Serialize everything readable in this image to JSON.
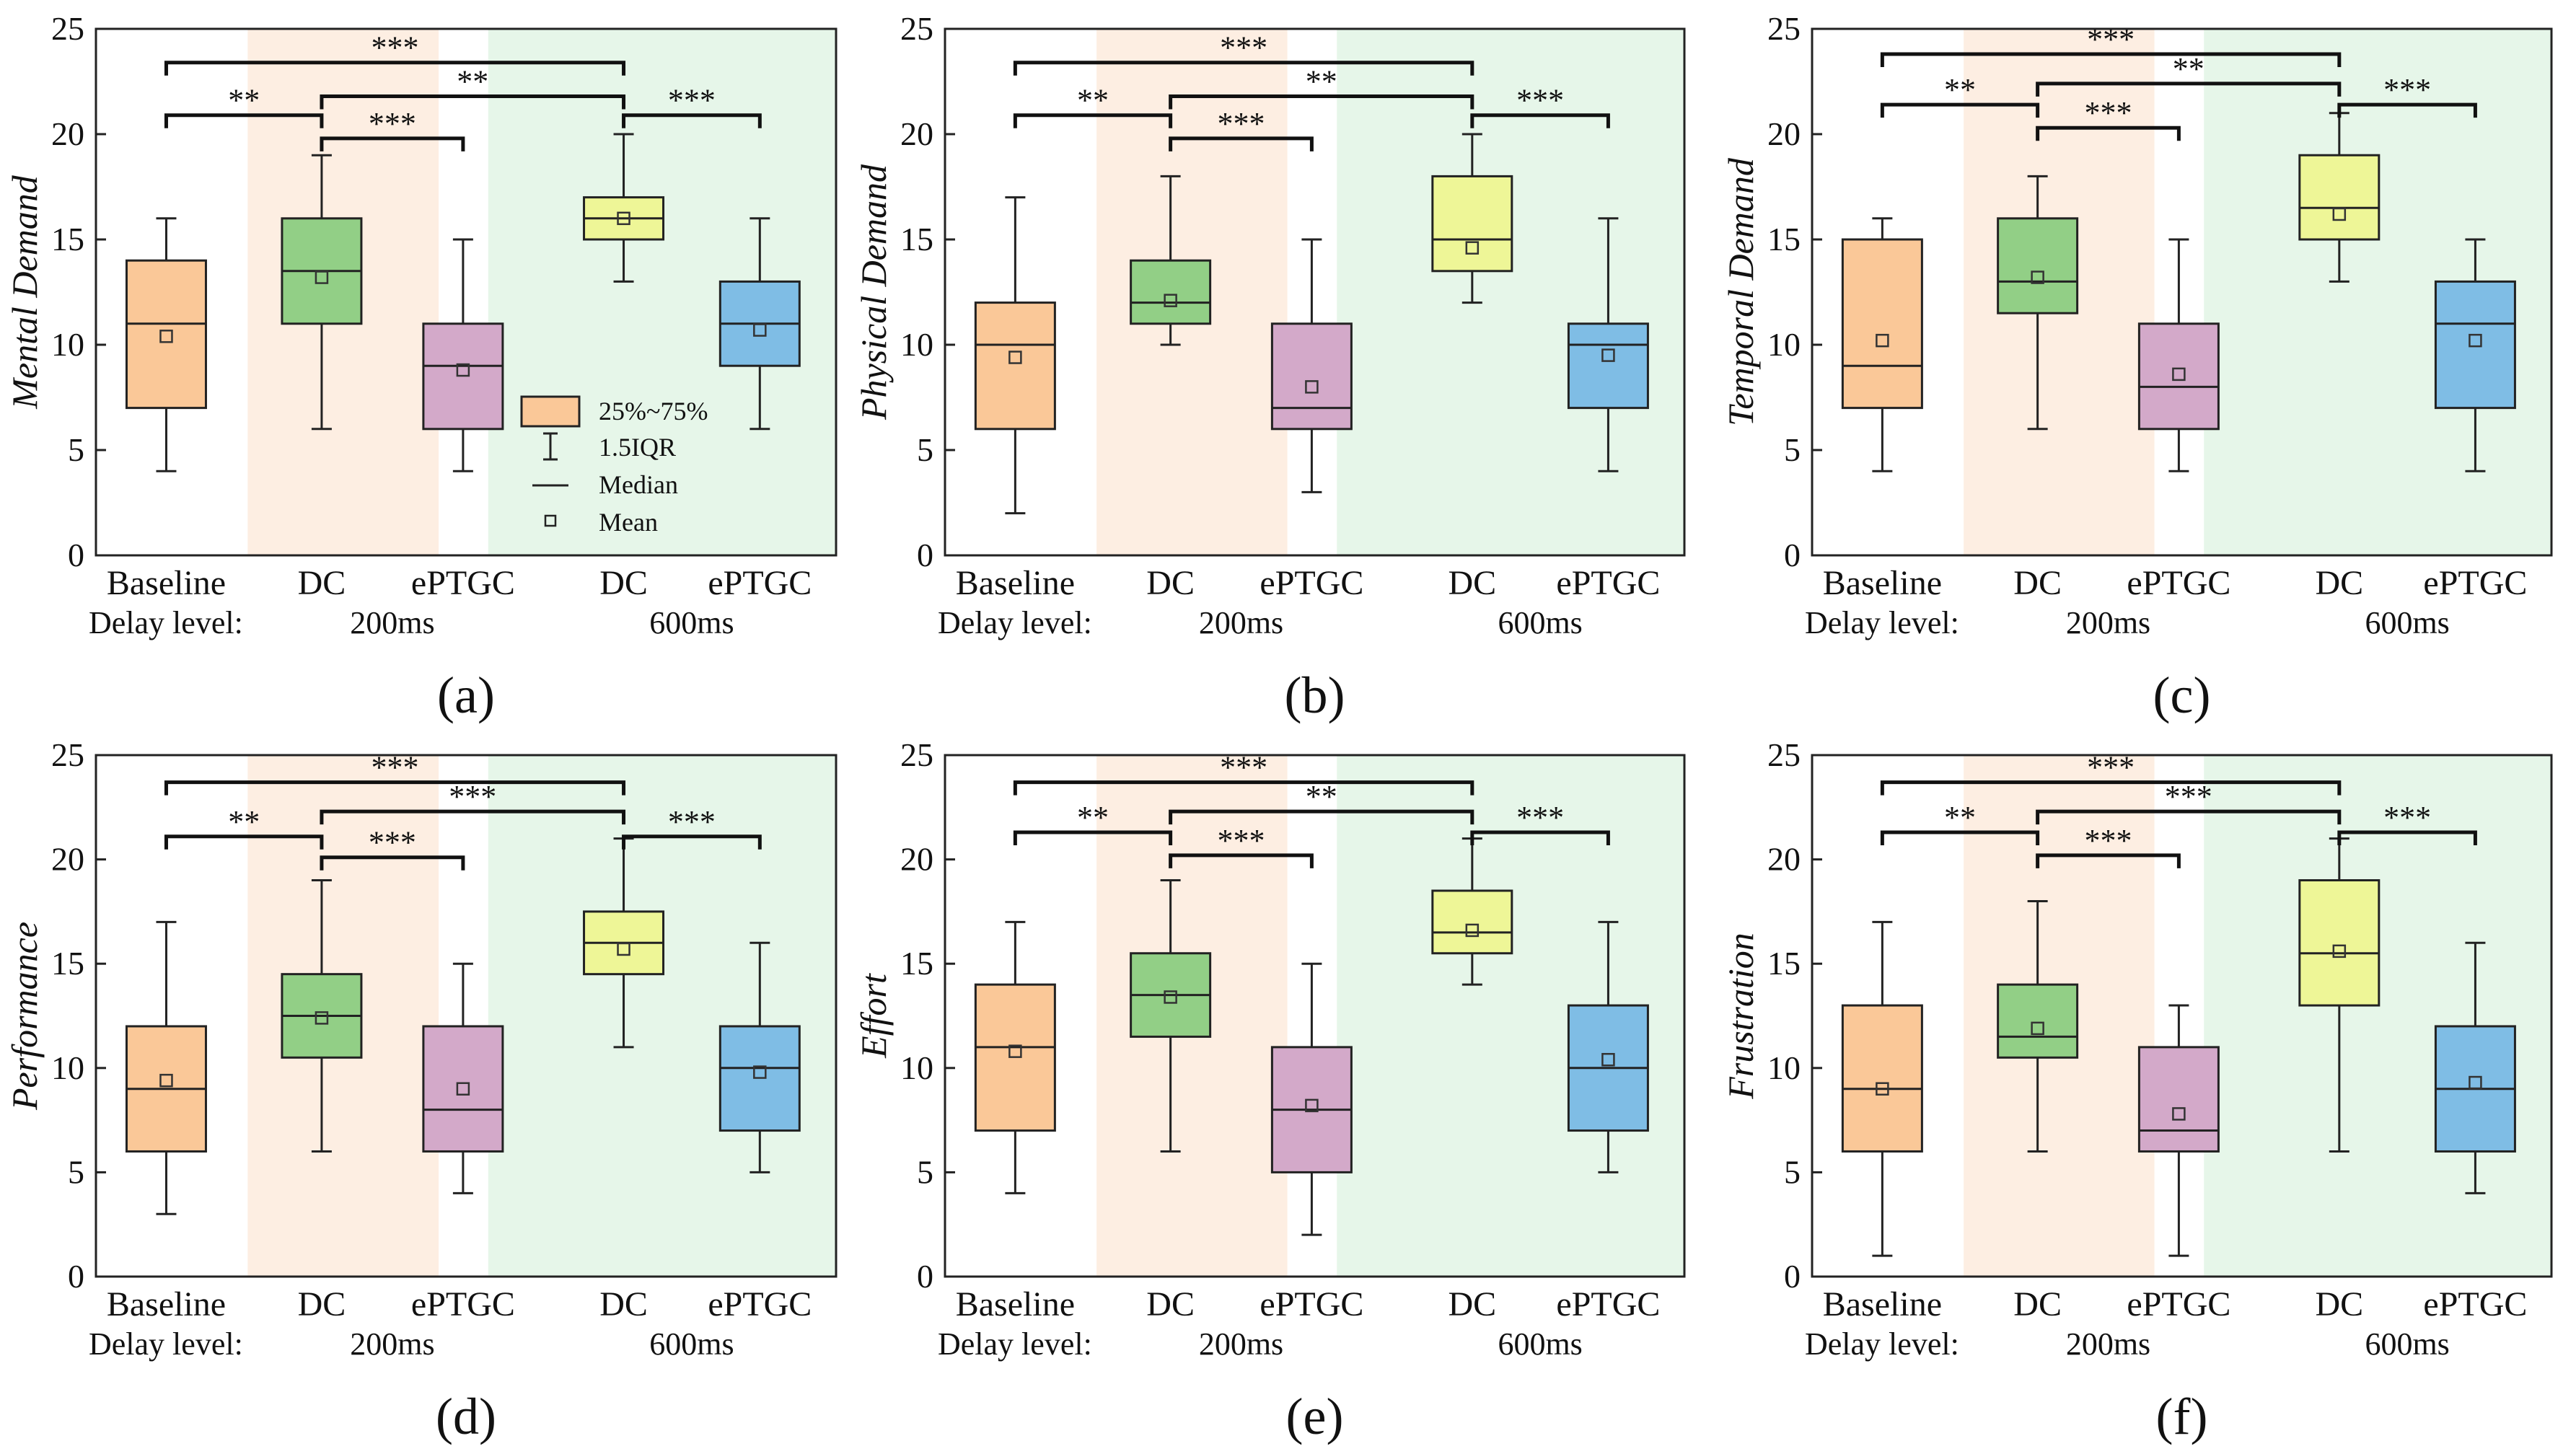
{
  "figure": {
    "delay_prefix": "Delay level:"
  },
  "legend": {
    "box": "25%~75%",
    "whisker": "1.5IQR",
    "median": "Median",
    "mean": "Mean"
  },
  "colors": {
    "Baseline": "#fac898",
    "DC200": "#92cf86",
    "ePTGC200": "#d3a9c9",
    "DC600": "#eef697",
    "ePTGC600": "#7fbde5",
    "band200": "#fdeee2",
    "band600": "#e6f6e9"
  },
  "chart_data": [
    {
      "type": "box",
      "panel_label": "(a)",
      "ylabel": "Mental Demand",
      "ylim": [
        0,
        25
      ],
      "yticks": [
        0,
        5,
        10,
        15,
        20,
        25
      ],
      "categories": [
        "Baseline",
        "DC",
        "ePTGC",
        "DC",
        "ePTGC"
      ],
      "groups": [
        {
          "label": "200ms",
          "members": [
            1,
            2
          ]
        },
        {
          "label": "600ms",
          "members": [
            3,
            4
          ]
        }
      ],
      "boxes": [
        {
          "min": 4,
          "q1": 7,
          "median": 11,
          "q3": 14,
          "max": 16,
          "mean": 10.4
        },
        {
          "min": 6,
          "q1": 11,
          "median": 13.5,
          "q3": 16,
          "max": 19,
          "mean": 13.2
        },
        {
          "min": 4,
          "q1": 6,
          "median": 9,
          "q3": 11,
          "max": 15,
          "mean": 8.8
        },
        {
          "min": 13,
          "q1": 15,
          "median": 16,
          "q3": 17,
          "max": 20,
          "mean": 16
        },
        {
          "min": 6,
          "q1": 9,
          "median": 11,
          "q3": 13,
          "max": 16,
          "mean": 10.7
        }
      ],
      "significance": [
        {
          "from": 0,
          "to": 3,
          "label": "***",
          "y": 23.4
        },
        {
          "from": 1,
          "to": 3,
          "label": "**",
          "y": 21.8
        },
        {
          "from": 0,
          "to": 1,
          "label": "**",
          "y": 20.9
        },
        {
          "from": 3,
          "to": 4,
          "label": "***",
          "y": 20.9
        },
        {
          "from": 1,
          "to": 2,
          "label": "***",
          "y": 19.8
        }
      ]
    },
    {
      "type": "box",
      "panel_label": "(b)",
      "ylabel": "Physical Demand",
      "ylim": [
        0,
        25
      ],
      "yticks": [
        0,
        5,
        10,
        15,
        20,
        25
      ],
      "categories": [
        "Baseline",
        "DC",
        "ePTGC",
        "DC",
        "ePTGC"
      ],
      "groups": [
        {
          "label": "200ms",
          "members": [
            1,
            2
          ]
        },
        {
          "label": "600ms",
          "members": [
            3,
            4
          ]
        }
      ],
      "boxes": [
        {
          "min": 2,
          "q1": 6,
          "median": 10,
          "q3": 12,
          "max": 17,
          "mean": 9.4
        },
        {
          "min": 10,
          "q1": 11,
          "median": 12,
          "q3": 14,
          "max": 18,
          "mean": 12.1
        },
        {
          "min": 3,
          "q1": 6,
          "median": 7,
          "q3": 11,
          "max": 15,
          "mean": 8
        },
        {
          "min": 12,
          "q1": 13.5,
          "median": 15,
          "q3": 18,
          "max": 20,
          "mean": 14.6
        },
        {
          "min": 4,
          "q1": 7,
          "median": 10,
          "q3": 11,
          "max": 16,
          "mean": 9.5
        }
      ],
      "significance": [
        {
          "from": 0,
          "to": 3,
          "label": "***",
          "y": 23.4
        },
        {
          "from": 1,
          "to": 3,
          "label": "**",
          "y": 21.8
        },
        {
          "from": 0,
          "to": 1,
          "label": "**",
          "y": 20.9
        },
        {
          "from": 3,
          "to": 4,
          "label": "***",
          "y": 20.9
        },
        {
          "from": 1,
          "to": 2,
          "label": "***",
          "y": 19.8
        }
      ]
    },
    {
      "type": "box",
      "panel_label": "(c)",
      "ylabel": "Temporal Demand",
      "ylim": [
        0,
        25
      ],
      "yticks": [
        0,
        5,
        10,
        15,
        20,
        25
      ],
      "categories": [
        "Baseline",
        "DC",
        "ePTGC",
        "DC",
        "ePTGC"
      ],
      "groups": [
        {
          "label": "200ms",
          "members": [
            1,
            2
          ]
        },
        {
          "label": "600ms",
          "members": [
            3,
            4
          ]
        }
      ],
      "boxes": [
        {
          "min": 4,
          "q1": 7,
          "median": 9,
          "q3": 15,
          "max": 16,
          "mean": 10.2
        },
        {
          "min": 6,
          "q1": 11.5,
          "median": 13,
          "q3": 16,
          "max": 18,
          "mean": 13.2
        },
        {
          "min": 4,
          "q1": 6,
          "median": 8,
          "q3": 11,
          "max": 15,
          "mean": 8.6
        },
        {
          "min": 13,
          "q1": 15,
          "median": 16.5,
          "q3": 19,
          "max": 21,
          "mean": 16.2
        },
        {
          "min": 4,
          "q1": 7,
          "median": 11,
          "q3": 13,
          "max": 15,
          "mean": 10.2
        }
      ],
      "significance": [
        {
          "from": 0,
          "to": 3,
          "label": "***",
          "y": 23.8
        },
        {
          "from": 1,
          "to": 3,
          "label": "**",
          "y": 22.4
        },
        {
          "from": 0,
          "to": 1,
          "label": "**",
          "y": 21.4
        },
        {
          "from": 3,
          "to": 4,
          "label": "***",
          "y": 21.4
        },
        {
          "from": 1,
          "to": 2,
          "label": "***",
          "y": 20.3
        }
      ]
    },
    {
      "type": "box",
      "panel_label": "(d)",
      "ylabel": "Performance",
      "ylim": [
        0,
        25
      ],
      "yticks": [
        0,
        5,
        10,
        15,
        20,
        25
      ],
      "categories": [
        "Baseline",
        "DC",
        "ePTGC",
        "DC",
        "ePTGC"
      ],
      "groups": [
        {
          "label": "200ms",
          "members": [
            1,
            2
          ]
        },
        {
          "label": "600ms",
          "members": [
            3,
            4
          ]
        }
      ],
      "boxes": [
        {
          "min": 3,
          "q1": 6,
          "median": 9,
          "q3": 12,
          "max": 17,
          "mean": 9.4
        },
        {
          "min": 6,
          "q1": 10.5,
          "median": 12.5,
          "q3": 14.5,
          "max": 19,
          "mean": 12.4
        },
        {
          "min": 4,
          "q1": 6,
          "median": 8,
          "q3": 12,
          "max": 15,
          "mean": 9
        },
        {
          "min": 11,
          "q1": 14.5,
          "median": 16,
          "q3": 17.5,
          "max": 21,
          "mean": 15.7
        },
        {
          "min": 5,
          "q1": 7,
          "median": 10,
          "q3": 12,
          "max": 16,
          "mean": 9.8
        }
      ],
      "significance": [
        {
          "from": 0,
          "to": 3,
          "label": "***",
          "y": 23.7
        },
        {
          "from": 1,
          "to": 3,
          "label": "***",
          "y": 22.3
        },
        {
          "from": 0,
          "to": 1,
          "label": "**",
          "y": 21.1
        },
        {
          "from": 3,
          "to": 4,
          "label": "***",
          "y": 21.1
        },
        {
          "from": 1,
          "to": 2,
          "label": "***",
          "y": 20.1
        }
      ]
    },
    {
      "type": "box",
      "panel_label": "(e)",
      "ylabel": "Effort",
      "ylim": [
        0,
        25
      ],
      "yticks": [
        0,
        5,
        10,
        15,
        20,
        25
      ],
      "categories": [
        "Baseline",
        "DC",
        "ePTGC",
        "DC",
        "ePTGC"
      ],
      "groups": [
        {
          "label": "200ms",
          "members": [
            1,
            2
          ]
        },
        {
          "label": "600ms",
          "members": [
            3,
            4
          ]
        }
      ],
      "boxes": [
        {
          "min": 4,
          "q1": 7,
          "median": 11,
          "q3": 14,
          "max": 17,
          "mean": 10.8
        },
        {
          "min": 6,
          "q1": 11.5,
          "median": 13.5,
          "q3": 15.5,
          "max": 19,
          "mean": 13.4
        },
        {
          "min": 2,
          "q1": 5,
          "median": 8,
          "q3": 11,
          "max": 15,
          "mean": 8.2
        },
        {
          "min": 14,
          "q1": 15.5,
          "median": 16.5,
          "q3": 18.5,
          "max": 21,
          "mean": 16.6
        },
        {
          "min": 5,
          "q1": 7,
          "median": 10,
          "q3": 13,
          "max": 17,
          "mean": 10.4
        }
      ],
      "significance": [
        {
          "from": 0,
          "to": 3,
          "label": "***",
          "y": 23.7
        },
        {
          "from": 1,
          "to": 3,
          "label": "**",
          "y": 22.3
        },
        {
          "from": 0,
          "to": 1,
          "label": "**",
          "y": 21.3
        },
        {
          "from": 3,
          "to": 4,
          "label": "***",
          "y": 21.3
        },
        {
          "from": 1,
          "to": 2,
          "label": "***",
          "y": 20.2
        }
      ]
    },
    {
      "type": "box",
      "panel_label": "(f)",
      "ylabel": "Frustration",
      "ylim": [
        0,
        25
      ],
      "yticks": [
        0,
        5,
        10,
        15,
        20,
        25
      ],
      "categories": [
        "Baseline",
        "DC",
        "ePTGC",
        "DC",
        "ePTGC"
      ],
      "groups": [
        {
          "label": "200ms",
          "members": [
            1,
            2
          ]
        },
        {
          "label": "600ms",
          "members": [
            3,
            4
          ]
        }
      ],
      "boxes": [
        {
          "min": 1,
          "q1": 6,
          "median": 9,
          "q3": 13,
          "max": 17,
          "mean": 9
        },
        {
          "min": 6,
          "q1": 10.5,
          "median": 11.5,
          "q3": 14,
          "max": 18,
          "mean": 11.9
        },
        {
          "min": 1,
          "q1": 6,
          "median": 7,
          "q3": 11,
          "max": 13,
          "mean": 7.8
        },
        {
          "min": 6,
          "q1": 13,
          "median": 15.5,
          "q3": 19,
          "max": 21,
          "mean": 15.6
        },
        {
          "min": 4,
          "q1": 6,
          "median": 9,
          "q3": 12,
          "max": 16,
          "mean": 9.3
        }
      ],
      "significance": [
        {
          "from": 0,
          "to": 3,
          "label": "***",
          "y": 23.7
        },
        {
          "from": 1,
          "to": 3,
          "label": "***",
          "y": 22.3
        },
        {
          "from": 0,
          "to": 1,
          "label": "**",
          "y": 21.3
        },
        {
          "from": 3,
          "to": 4,
          "label": "***",
          "y": 21.3
        },
        {
          "from": 1,
          "to": 2,
          "label": "***",
          "y": 20.2
        }
      ]
    }
  ]
}
